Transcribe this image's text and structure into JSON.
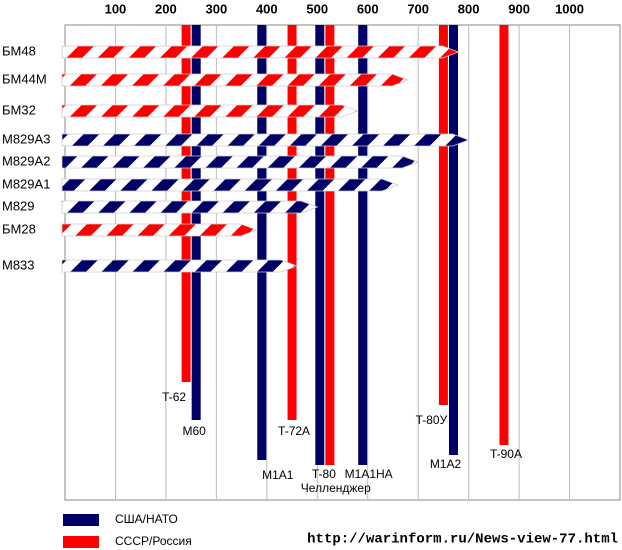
{
  "chart_data": {
    "type": "penetration-armor",
    "xlim": [
      0,
      1100
    ],
    "xticks": [
      100,
      200,
      300,
      400,
      500,
      600,
      700,
      800,
      900,
      1000
    ],
    "grid": true,
    "rounds": {
      "categories": [
        "БМ48",
        "БМ44М",
        "БМ32",
        "M829A3",
        "M829A2",
        "M829A1",
        "M829",
        "БМ28",
        "M833"
      ],
      "values": [
        780,
        680,
        580,
        800,
        700,
        660,
        500,
        380,
        460
      ],
      "colors": [
        "#ff0000",
        "#ff0000",
        "#ff0000",
        "#000066",
        "#000066",
        "#000066",
        "#000066",
        "#ff0000",
        "#000066"
      ]
    },
    "tanks": {
      "categories": [
        "T-62",
        "M60",
        "M1A1",
        "T-72A",
        "Челленджер",
        "T-80",
        "M1A1HA",
        "T-80У",
        "M1A2",
        "T-90A"
      ],
      "values": [
        240,
        260,
        390,
        450,
        505,
        525,
        590,
        750,
        770,
        870
      ],
      "colors": [
        "#ff0000",
        "#000066",
        "#000066",
        "#ff0000",
        "#000066",
        "#ff0000",
        "#000066",
        "#ff0000",
        "#000066",
        "#ff0000"
      ]
    },
    "series": [
      {
        "name": "США/НАТО",
        "color": "#000066"
      },
      {
        "name": "СССР/Россия",
        "color": "#ff0000"
      }
    ],
    "source": "http://warinform.ru/News-view-77.html"
  }
}
